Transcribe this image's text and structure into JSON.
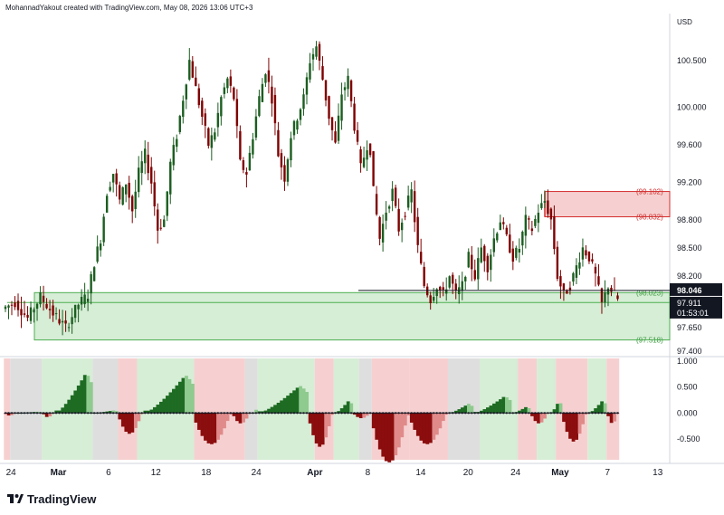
{
  "header": {
    "text": "MohannadYakout created with TradingView.com, May 08, 2026 13:06 UTC+3"
  },
  "currency": "USD",
  "brand": "TradingView",
  "colors": {
    "up": "#1b5e20",
    "down": "#7f0000",
    "zone_green": "#d6edd6",
    "zone_red": "#f6d0d0",
    "zone_gray": "#dedede",
    "hist_up_dark": "#1e6b23",
    "hist_up_light": "#8fca8f",
    "hist_down_dark": "#8b0d0d",
    "hist_down_light": "#e08a8a",
    "line_green": "#4caf50",
    "line_red": "#d32f2f"
  },
  "chart_data": [
    {
      "type": "candlestick",
      "y_ticks": [
        "100.500",
        "100.000",
        "99.600",
        "99.200",
        "98.800",
        "98.500",
        "98.200",
        "97.650",
        "97.400"
      ],
      "ylim": [
        97.35,
        101.0
      ],
      "x_ticks": [
        "24",
        "Mar",
        "6",
        "12",
        "18",
        "24",
        "Apr",
        "8",
        "14",
        "20",
        "24",
        "May",
        "7",
        "13"
      ],
      "price_tags": [
        {
          "label": "98.046",
          "value": 98.046,
          "style": "black"
        },
        {
          "label": "97.911",
          "value": 97.911,
          "style": "black"
        },
        {
          "label": "01:53:01",
          "value": 97.8,
          "style": "black"
        }
      ],
      "levels": [
        {
          "label": "(99.102)",
          "value": 99.102,
          "color": "red"
        },
        {
          "label": "(98.832)",
          "value": 98.832,
          "color": "red"
        },
        {
          "label": "(98.023)",
          "value": 98.023,
          "color": "green"
        },
        {
          "label": "(97.518)",
          "value": 97.518,
          "color": "green"
        }
      ],
      "candles_path": [
        [
          0,
          97.85
        ],
        [
          4,
          97.92
        ],
        [
          8,
          97.75
        ],
        [
          12,
          97.98
        ],
        [
          16,
          97.8
        ],
        [
          20,
          97.65
        ],
        [
          24,
          97.9
        ],
        [
          27,
          98.0
        ],
        [
          29,
          98.35
        ],
        [
          31,
          98.6
        ],
        [
          33,
          99.1
        ],
        [
          35,
          99.3
        ],
        [
          37,
          99.0
        ],
        [
          39,
          99.2
        ],
        [
          41,
          98.9
        ],
        [
          43,
          99.3
        ],
        [
          45,
          99.5
        ],
        [
          47,
          99.2
        ],
        [
          49,
          98.7
        ],
        [
          51,
          98.8
        ],
        [
          53,
          99.4
        ],
        [
          55,
          99.7
        ],
        [
          57,
          100.1
        ],
        [
          59,
          100.5
        ],
        [
          61,
          100.2
        ],
        [
          63,
          99.9
        ],
        [
          65,
          99.6
        ],
        [
          67,
          99.75
        ],
        [
          69,
          100.1
        ],
        [
          71,
          100.3
        ],
        [
          73,
          100.1
        ],
        [
          75,
          99.4
        ],
        [
          77,
          99.3
        ],
        [
          79,
          99.7
        ],
        [
          81,
          100.1
        ],
        [
          83,
          100.4
        ],
        [
          85,
          100.1
        ],
        [
          87,
          99.5
        ],
        [
          89,
          99.25
        ],
        [
          91,
          99.7
        ],
        [
          93,
          99.9
        ],
        [
          95,
          100.1
        ],
        [
          97,
          100.5
        ],
        [
          99,
          100.65
        ],
        [
          101,
          100.3
        ],
        [
          103,
          99.9
        ],
        [
          105,
          99.6
        ],
        [
          107,
          100.15
        ],
        [
          109,
          100.3
        ],
        [
          111,
          99.8
        ],
        [
          113,
          99.35
        ],
        [
          115,
          99.6
        ],
        [
          116,
          99.55
        ],
        [
          117,
          99.1
        ],
        [
          119,
          98.6
        ],
        [
          121,
          98.9
        ],
        [
          123,
          99.1
        ],
        [
          125,
          98.7
        ],
        [
          127,
          98.9
        ],
        [
          129,
          99.1
        ],
        [
          131,
          98.5
        ],
        [
          133,
          98.1
        ],
        [
          135,
          97.95
        ],
        [
          137,
          98.1
        ],
        [
          139,
          98.0
        ],
        [
          141,
          98.2
        ],
        [
          143,
          98.0
        ],
        [
          145,
          98.1
        ],
        [
          147,
          98.4
        ],
        [
          149,
          98.2
        ],
        [
          151,
          98.5
        ],
        [
          153,
          98.3
        ],
        [
          155,
          98.6
        ],
        [
          157,
          98.8
        ],
        [
          159,
          98.6
        ],
        [
          161,
          98.4
        ],
        [
          163,
          98.5
        ],
        [
          165,
          98.8
        ],
        [
          167,
          98.7
        ],
        [
          169,
          98.9
        ],
        [
          171,
          99.0
        ],
        [
          173,
          98.8
        ],
        [
          175,
          98.2
        ],
        [
          177,
          98.0
        ],
        [
          179,
          98.1
        ],
        [
          181,
          98.3
        ],
        [
          183,
          98.5
        ],
        [
          185,
          98.4
        ],
        [
          187,
          98.2
        ],
        [
          189,
          97.9
        ],
        [
          191,
          98.1
        ],
        [
          193,
          98.0
        ],
        [
          194,
          97.95
        ]
      ],
      "histogram_zones": [
        [
          "red",
          0,
          2
        ],
        [
          "gray",
          2,
          12
        ],
        [
          "green",
          12,
          28
        ],
        [
          "gray",
          28,
          36
        ],
        [
          "red",
          36,
          42
        ],
        [
          "green",
          42,
          60
        ],
        [
          "red",
          60,
          76
        ],
        [
          "gray",
          76,
          80
        ],
        [
          "green",
          80,
          98
        ],
        [
          "red",
          98,
          104
        ],
        [
          "green",
          104,
          112
        ],
        [
          "gray",
          112,
          116
        ],
        [
          "red",
          116,
          128
        ],
        [
          "red",
          128,
          140
        ],
        [
          "gray",
          140,
          150
        ],
        [
          "green",
          150,
          162
        ],
        [
          "red",
          162,
          168
        ],
        [
          "green",
          168,
          174
        ],
        [
          "red",
          174,
          184
        ],
        [
          "green",
          184,
          190
        ],
        [
          "red",
          190,
          194
        ]
      ],
      "histogram_segments": [
        [
          0,
          4,
          -0.05
        ],
        [
          4,
          12,
          0.03
        ],
        [
          12,
          16,
          -0.08
        ],
        [
          16,
          28,
          0.95
        ],
        [
          28,
          36,
          0.06
        ],
        [
          36,
          44,
          -0.4
        ],
        [
          44,
          60,
          0.9
        ],
        [
          60,
          72,
          -0.6
        ],
        [
          72,
          78,
          -0.2
        ],
        [
          78,
          80,
          0.1
        ],
        [
          80,
          96,
          0.65
        ],
        [
          96,
          104,
          -0.65
        ],
        [
          104,
          110,
          0.3
        ],
        [
          110,
          116,
          -0.1
        ],
        [
          116,
          128,
          -0.95
        ],
        [
          128,
          140,
          -0.6
        ],
        [
          140,
          148,
          0.22
        ],
        [
          148,
          160,
          0.4
        ],
        [
          160,
          166,
          0.15
        ],
        [
          166,
          172,
          -0.2
        ],
        [
          172,
          176,
          0.3
        ],
        [
          176,
          184,
          -0.55
        ],
        [
          184,
          190,
          0.3
        ],
        [
          190,
          194,
          -0.2
        ]
      ],
      "hist_ticks": [
        "1.000",
        "0.500",
        "0.000",
        "-0.500"
      ],
      "hist_ylim": [
        -0.9,
        1.05
      ]
    }
  ]
}
